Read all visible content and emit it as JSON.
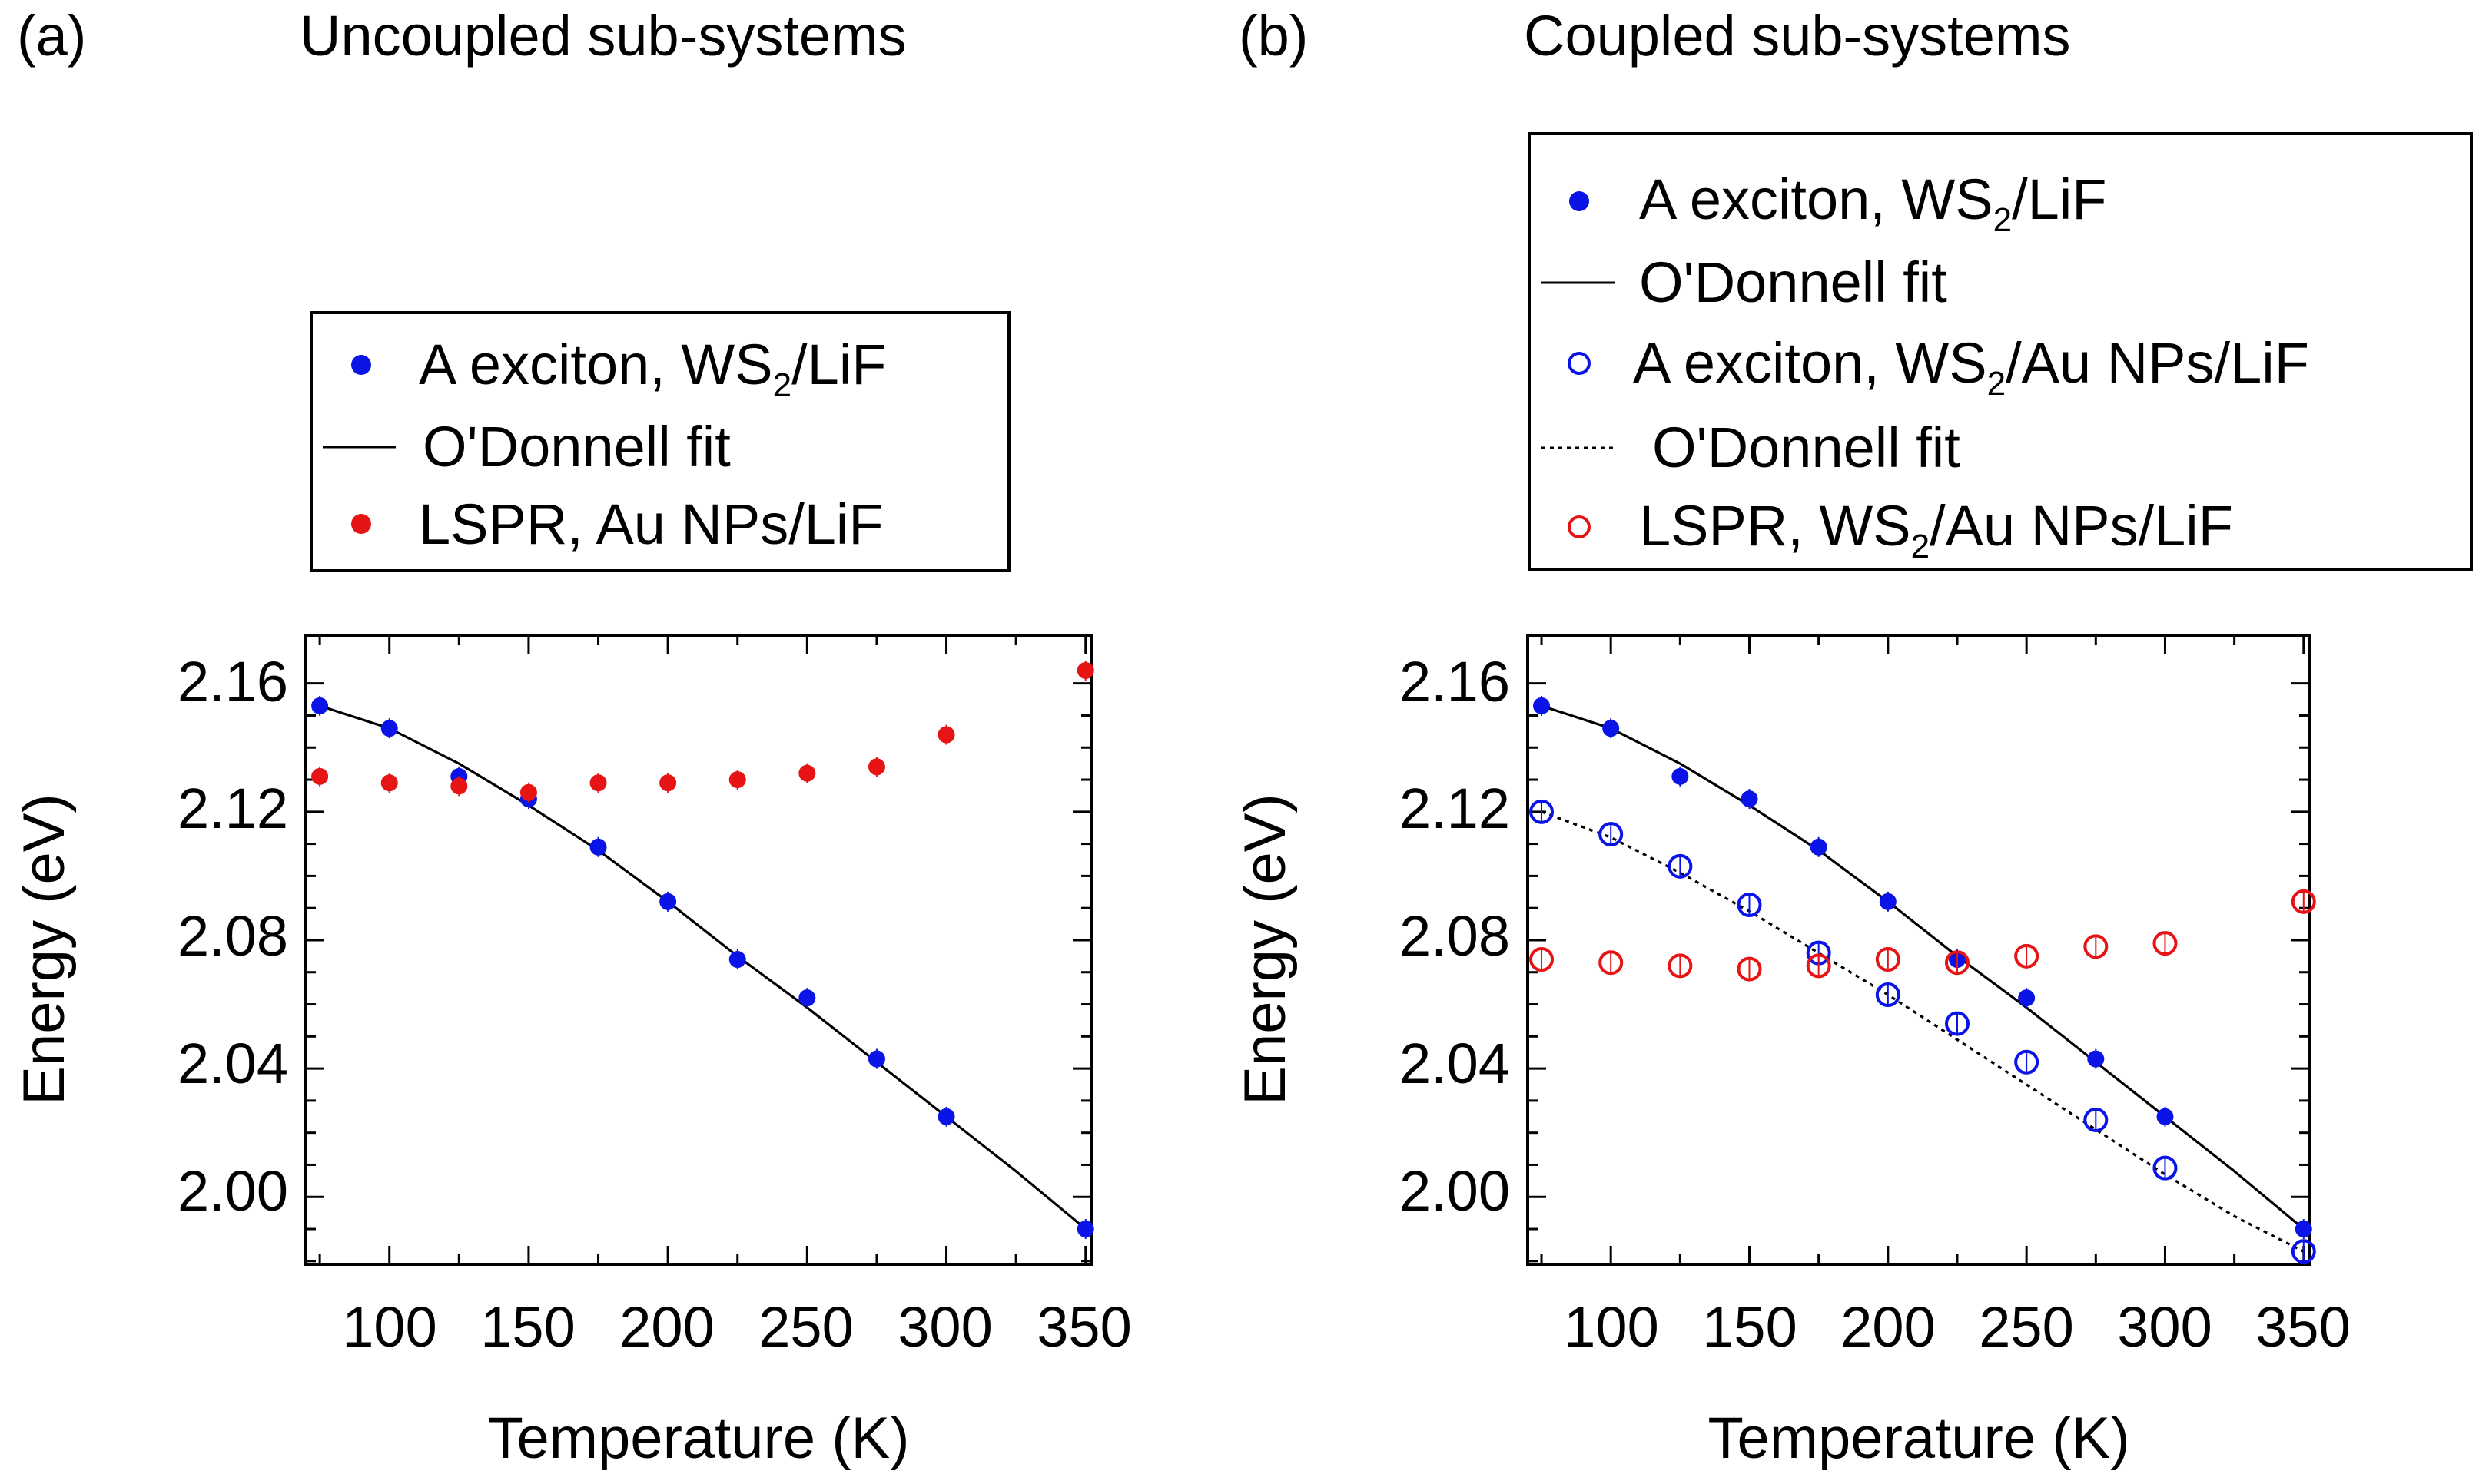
{
  "colors": {
    "blue": "#0a14e6",
    "red": "#e61414",
    "black": "#000000"
  },
  "chart_data": [
    {
      "type": "scatter",
      "panel_label": "(a)",
      "title": "Uncoupled sub-systems",
      "xlabel": "Temperature (K)",
      "ylabel": "Energy (eV)",
      "xlim": [
        70,
        352
      ],
      "ylim": [
        1.979,
        2.175
      ],
      "xticks": [
        "100",
        "150",
        "200",
        "250",
        "300",
        "350"
      ],
      "yticks": [
        "2.00",
        "2.04",
        "2.08",
        "2.12",
        "2.16"
      ],
      "series": [
        {
          "name": "A exciton, WS",
          "subscript": "2",
          "name_suffix": "/LiF",
          "marker": "filled-circle",
          "color": "blue",
          "x": [
            75,
            100,
            125,
            150,
            175,
            200,
            225,
            250,
            275,
            300,
            350
          ],
          "y": [
            2.153,
            2.146,
            2.131,
            2.124,
            2.109,
            2.092,
            2.074,
            2.062,
            2.043,
            2.025,
            1.99
          ]
        },
        {
          "name": "O'Donnell fit",
          "type": "line",
          "style": "solid",
          "color": "black",
          "x": [
            75,
            100,
            125,
            150,
            175,
            200,
            225,
            250,
            275,
            300,
            325,
            350
          ],
          "y": [
            2.153,
            2.146,
            2.135,
            2.122,
            2.108,
            2.092,
            2.075,
            2.059,
            2.042,
            2.025,
            2.008,
            1.99
          ]
        },
        {
          "name": "LSPR, Au NPs/LiF",
          "marker": "filled-circle",
          "color": "red",
          "x": [
            75,
            100,
            125,
            150,
            175,
            200,
            225,
            250,
            275,
            300,
            350
          ],
          "y": [
            2.131,
            2.129,
            2.128,
            2.126,
            2.129,
            2.129,
            2.13,
            2.132,
            2.134,
            2.144,
            2.164
          ]
        }
      ]
    },
    {
      "type": "scatter",
      "panel_label": "(b)",
      "title": "Coupled sub-systems",
      "xlabel": "Temperature (K)",
      "ylabel": "Energy (eV)",
      "xlim": [
        70,
        352
      ],
      "ylim": [
        1.979,
        2.175
      ],
      "xticks": [
        "100",
        "150",
        "200",
        "250",
        "300",
        "350"
      ],
      "yticks": [
        "2.00",
        "2.04",
        "2.08",
        "2.12",
        "2.16"
      ],
      "series": [
        {
          "name": "A exciton, WS",
          "subscript": "2",
          "name_suffix": "/LiF",
          "marker": "filled-circle",
          "color": "blue",
          "x": [
            75,
            100,
            125,
            150,
            175,
            200,
            225,
            250,
            275,
            300,
            350
          ],
          "y": [
            2.153,
            2.146,
            2.131,
            2.124,
            2.109,
            2.092,
            2.074,
            2.062,
            2.043,
            2.025,
            1.99
          ]
        },
        {
          "name": "O'Donnell fit",
          "type": "line",
          "style": "solid",
          "color": "black",
          "x": [
            75,
            100,
            125,
            150,
            175,
            200,
            225,
            250,
            275,
            300,
            325,
            350
          ],
          "y": [
            2.153,
            2.146,
            2.135,
            2.122,
            2.108,
            2.092,
            2.075,
            2.059,
            2.042,
            2.025,
            2.008,
            1.99
          ]
        },
        {
          "name": "A exciton, WS",
          "subscript": "2",
          "name_suffix": "/Au NPs/LiF",
          "marker": "open-circle",
          "color": "blue",
          "x": [
            75,
            100,
            125,
            150,
            175,
            200,
            225,
            250,
            275,
            300,
            350
          ],
          "y": [
            2.12,
            2.113,
            2.103,
            2.091,
            2.076,
            2.063,
            2.054,
            2.042,
            2.024,
            2.009,
            1.983
          ]
        },
        {
          "name": "O'Donnell fit",
          "type": "line",
          "style": "dotted",
          "color": "black",
          "x": [
            75,
            100,
            125,
            150,
            175,
            200,
            225,
            250,
            275,
            300,
            325,
            350
          ],
          "y": [
            2.12,
            2.112,
            2.101,
            2.089,
            2.076,
            2.063,
            2.049,
            2.035,
            2.021,
            2.007,
            1.994,
            1.983
          ]
        },
        {
          "name": "LSPR, WS",
          "subscript": "2",
          "name_suffix": "/Au NPs/LiF",
          "marker": "open-circle",
          "color": "red",
          "x": [
            75,
            100,
            125,
            150,
            175,
            200,
            225,
            250,
            275,
            300,
            350
          ],
          "y": [
            2.074,
            2.073,
            2.072,
            2.071,
            2.072,
            2.074,
            2.073,
            2.075,
            2.078,
            2.079,
            2.092
          ]
        }
      ]
    }
  ]
}
